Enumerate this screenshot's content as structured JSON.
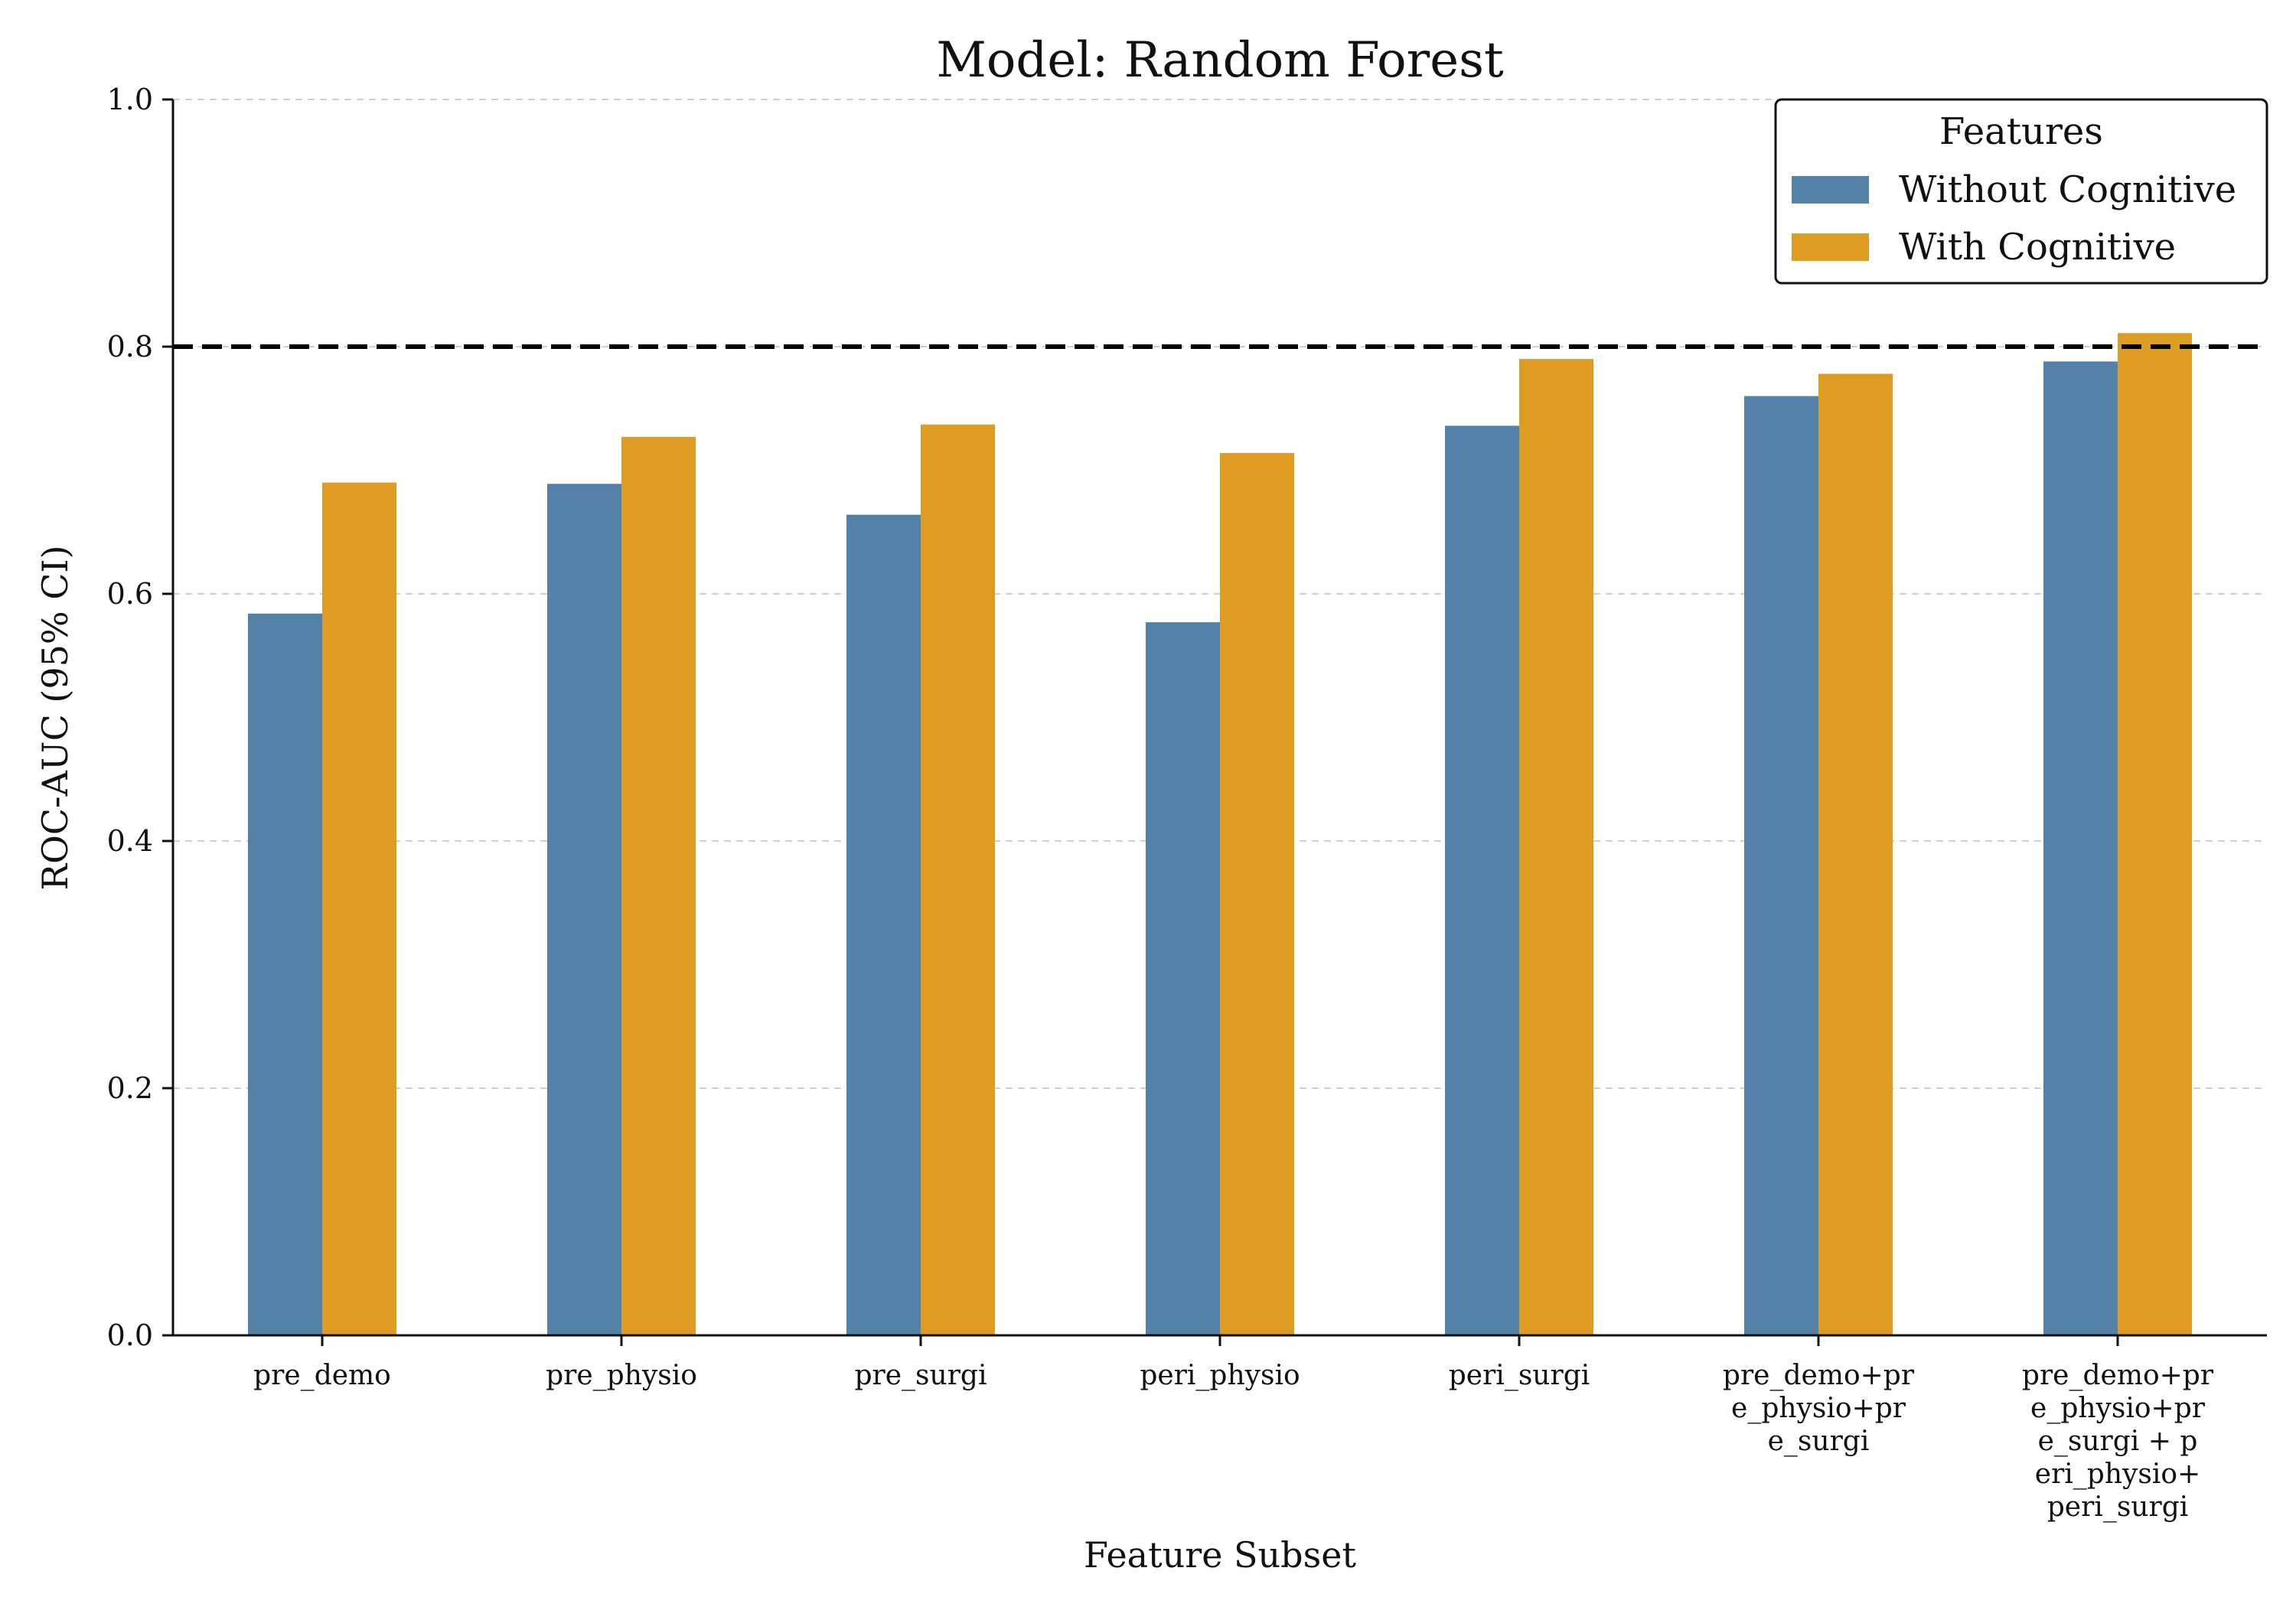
{
  "chart_data": {
    "type": "bar",
    "title": "Model: Random Forest",
    "xlabel": "Feature Subset",
    "ylabel": "ROC-AUC (95% CI)",
    "ylim": [
      0,
      1.0
    ],
    "yticks": [
      "0.0",
      "0.2",
      "0.4",
      "0.6",
      "0.8",
      "1.0"
    ],
    "grid": "y-dashed",
    "reference_line": 0.8,
    "legend": {
      "title": "Features",
      "placement": "top-right"
    },
    "categories": [
      [
        "pre_demo"
      ],
      [
        "pre_physio"
      ],
      [
        "pre_surgi"
      ],
      [
        "peri_physio"
      ],
      [
        "peri_surgi"
      ],
      [
        "pre_demo+pr",
        "e_physio+pr",
        "e_surgi"
      ],
      [
        "pre_demo+pr",
        "e_physio+pr",
        "e_surgi + p",
        "eri_physio+",
        "peri_surgi"
      ]
    ],
    "series": [
      {
        "name": "Without Cognitive",
        "color": "#5381a7",
        "values": [
          0.584,
          0.689,
          0.664,
          0.577,
          0.736,
          0.76,
          0.788
        ]
      },
      {
        "name": "With Cognitive",
        "color": "#df9c22",
        "values": [
          0.69,
          0.727,
          0.737,
          0.714,
          0.79,
          0.778,
          0.811
        ]
      }
    ]
  }
}
